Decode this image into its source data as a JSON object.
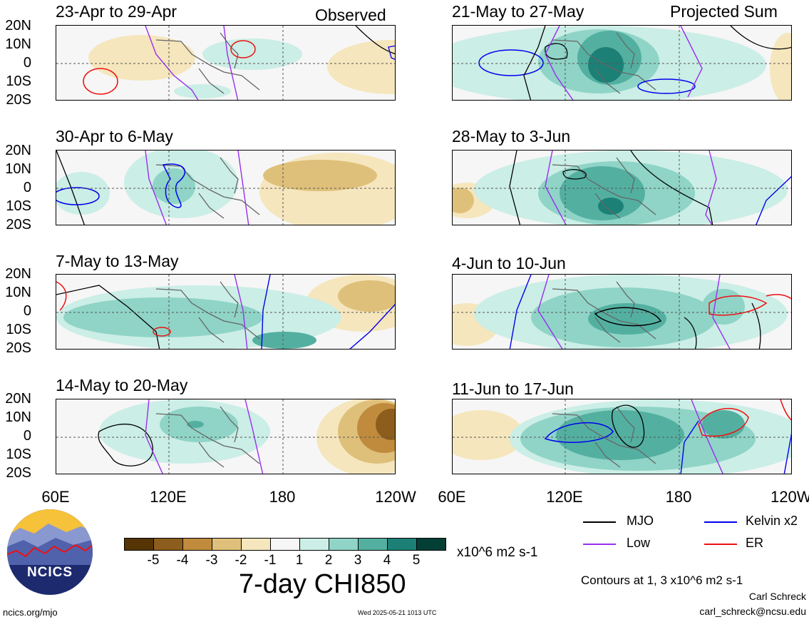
{
  "header": {
    "left_label": "Observed",
    "right_label": "Projected Sum"
  },
  "panels_left": [
    {
      "title": "23-Apr to 29-Apr"
    },
    {
      "title": "30-Apr to 6-May"
    },
    {
      "title": "7-May to 13-May"
    },
    {
      "title": "14-May to 20-May"
    }
  ],
  "panels_right": [
    {
      "title": "21-May to 27-May"
    },
    {
      "title": "28-May to 3-Jun"
    },
    {
      "title": "4-Jun to 10-Jun"
    },
    {
      "title": "11-Jun to 17-Jun"
    }
  ],
  "y_ticks": [
    "20N",
    "10N",
    "0",
    "10S",
    "20S"
  ],
  "x_ticks": [
    "60E",
    "120E",
    "180",
    "120W"
  ],
  "colorbar": {
    "labels": [
      "-5",
      "-4",
      "-3",
      "-2",
      "-1",
      "1",
      "2",
      "3",
      "4",
      "5"
    ],
    "colors": [
      "#553505",
      "#8c5d1c",
      "#c08b3d",
      "#dfc07a",
      "#f5e6bd",
      "#f6f6f6",
      "#cbeee6",
      "#8fd4c7",
      "#53b0a1",
      "#1d8077",
      "#0b5e55",
      "#043f36"
    ],
    "units": "x10^6 m2 s-1",
    "title": "7-day CHI850"
  },
  "legend": {
    "items": [
      {
        "label": "MJO",
        "color": "#000000"
      },
      {
        "label": "Kelvin x2",
        "color": "#0000ee"
      },
      {
        "label": "Low",
        "color": "#9a2ef0"
      },
      {
        "label": "ER",
        "color": "#ee1111"
      }
    ],
    "contours_note": "Contours at 1, 3 x10^6 m2 s-1",
    "author": "Carl Schreck",
    "email": "carl_schreck@ncsu.edu"
  },
  "footer": {
    "site": "ncics.org/mjo",
    "timestamp": "Wed 2025-05-21 1013 UTC",
    "logo_text": "NCICS"
  }
}
